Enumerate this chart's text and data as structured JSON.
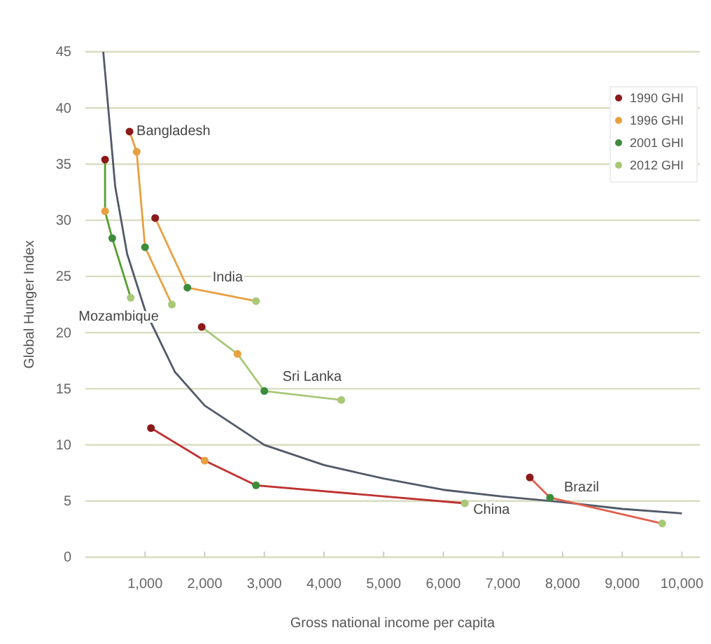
{
  "chart_data": {
    "type": "line",
    "xlabel": "Gross national income per capita",
    "ylabel": "Global Hunger Index",
    "xlim": [
      0,
      10300
    ],
    "ylim": [
      0,
      45
    ],
    "xticks": [
      {
        "value": 1000,
        "label": "1,000"
      },
      {
        "value": 2000,
        "label": "2,000"
      },
      {
        "value": 3000,
        "label": "3,000"
      },
      {
        "value": 4000,
        "label": "4,000"
      },
      {
        "value": 5000,
        "label": "5,000"
      },
      {
        "value": 6000,
        "label": "6,000"
      },
      {
        "value": 7000,
        "label": "7,000"
      },
      {
        "value": 8000,
        "label": "8,000"
      },
      {
        "value": 9000,
        "label": "9,000"
      },
      {
        "value": 10000,
        "label": "10,000"
      }
    ],
    "yticks": [
      0,
      5,
      10,
      15,
      20,
      25,
      30,
      35,
      40,
      45
    ],
    "grid": "y",
    "legend": "top right",
    "marker": "circle",
    "series": [
      {
        "type": "line",
        "color": "#505a6a",
        "marker": "none",
        "x": [
          300,
          500,
          700,
          1000,
          1500,
          2000,
          3000,
          4000,
          5000,
          6000,
          7000,
          8000,
          9000,
          10000
        ],
        "values": [
          45,
          33,
          27,
          22,
          16.5,
          13.5,
          10,
          8.2,
          7,
          6,
          5.4,
          4.9,
          4.3,
          3.9
        ]
      },
      {
        "type": "line",
        "color": "#55a030",
        "marker": "none",
        "x": [
          330,
          330,
          450,
          760
        ],
        "values": [
          35.4,
          30.8,
          28.4,
          23.1
        ]
      },
      {
        "type": "line",
        "color": "#e8a040",
        "marker": "none",
        "x": [
          740,
          860,
          1000,
          1450
        ],
        "values": [
          37.9,
          36.1,
          27.6,
          22.5
        ]
      },
      {
        "type": "line",
        "color": "#e8a040",
        "marker": "none",
        "x": [
          1170,
          1710,
          2860
        ],
        "values": [
          30.2,
          24,
          22.8
        ]
      },
      {
        "type": "line",
        "color": "#a8c878",
        "marker": "none",
        "x": [
          1950,
          2550,
          3000,
          4290
        ],
        "values": [
          20.5,
          18.1,
          14.8,
          14
        ]
      },
      {
        "type": "line",
        "color": "#c03030",
        "marker": "none",
        "x": [
          1100,
          2000,
          2860,
          6360
        ],
        "values": [
          11.5,
          8.6,
          6.4,
          4.8
        ]
      },
      {
        "type": "line",
        "color": "#e06050",
        "marker": "none",
        "x": [
          7450,
          7790,
          9670
        ],
        "values": [
          7.1,
          5.3,
          3
        ]
      },
      {
        "type": "scatter",
        "name": "1990 GHI",
        "color": "#8b1a1a",
        "x": [
          330,
          740,
          1170,
          1950,
          1100,
          7450
        ],
        "values": [
          35.4,
          37.9,
          30.2,
          20.5,
          11.5,
          7.1
        ]
      },
      {
        "type": "scatter",
        "name": "1996 GHI",
        "color": "#e8a040",
        "x": [
          330,
          860,
          2550,
          2000
        ],
        "values": [
          30.8,
          36.1,
          18.1,
          8.6
        ]
      },
      {
        "type": "scatter",
        "name": "2001 GHI",
        "color": "#3c8c3c",
        "x": [
          450,
          1000,
          1710,
          3000,
          2860,
          7790
        ],
        "values": [
          28.4,
          27.6,
          24,
          14.8,
          6.4,
          5.3
        ]
      },
      {
        "type": "scatter",
        "name": "2012 GHI",
        "color": "#a8c878",
        "x": [
          760,
          1450,
          2860,
          4290,
          6360,
          9670
        ],
        "values": [
          23.1,
          22.5,
          22.8,
          14,
          4.8,
          3
        ]
      }
    ],
    "annotations": [
      {
        "text": "Bangladesh",
        "x": 740,
        "y": 37.9
      },
      {
        "text": "India",
        "x": 1710,
        "y": 24
      },
      {
        "text": "Mozambique",
        "x": 760,
        "y": 23.1
      },
      {
        "text": "Sri Lanka",
        "x": 3000,
        "y": 14.8
      },
      {
        "text": "China",
        "x": 6360,
        "y": 4.8
      },
      {
        "text": "Brazil",
        "x": 7790,
        "y": 5.3
      }
    ]
  }
}
